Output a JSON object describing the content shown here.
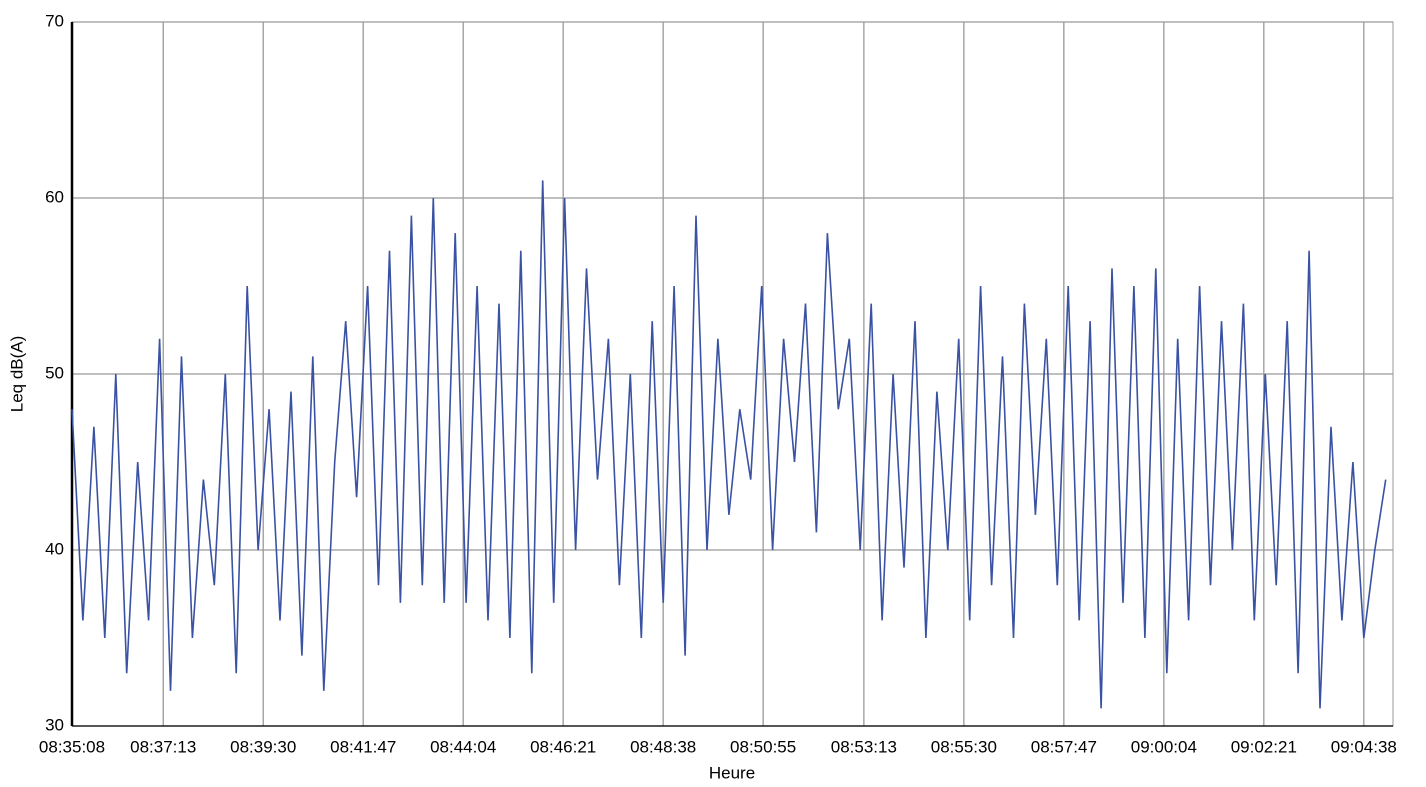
{
  "chart_data": {
    "type": "line",
    "x_label": "Heure",
    "y_label": "Leq dB(A)",
    "x": [
      "08:35:08",
      "08:35:23",
      "08:35:38",
      "08:35:53",
      "08:36:08",
      "08:36:23",
      "08:36:38",
      "08:36:53",
      "08:37:08",
      "08:37:23",
      "08:37:38",
      "08:37:53",
      "08:38:08",
      "08:38:23",
      "08:38:38",
      "08:38:53",
      "08:39:08",
      "08:39:23",
      "08:39:38",
      "08:39:53",
      "08:40:08",
      "08:40:23",
      "08:40:38",
      "08:40:53",
      "08:41:08",
      "08:41:23",
      "08:41:38",
      "08:41:53",
      "08:42:08",
      "08:42:23",
      "08:42:38",
      "08:42:53",
      "08:43:08",
      "08:43:23",
      "08:43:38",
      "08:43:53",
      "08:44:08",
      "08:44:23",
      "08:44:38",
      "08:44:53",
      "08:45:08",
      "08:45:23",
      "08:45:38",
      "08:45:53",
      "08:46:08",
      "08:46:23",
      "08:46:38",
      "08:46:53",
      "08:47:08",
      "08:47:23",
      "08:47:38",
      "08:47:53",
      "08:48:08",
      "08:48:23",
      "08:48:38",
      "08:48:53",
      "08:49:08",
      "08:49:23",
      "08:49:38",
      "08:49:53",
      "08:50:08",
      "08:50:23",
      "08:50:38",
      "08:50:53",
      "08:51:08",
      "08:51:23",
      "08:51:38",
      "08:51:53",
      "08:52:08",
      "08:52:23",
      "08:52:38",
      "08:52:53",
      "08:53:08",
      "08:53:23",
      "08:53:38",
      "08:53:53",
      "08:54:08",
      "08:54:23",
      "08:54:38",
      "08:54:53",
      "08:55:08",
      "08:55:23",
      "08:55:38",
      "08:55:53",
      "08:56:08",
      "08:56:23",
      "08:56:38",
      "08:56:53",
      "08:57:08",
      "08:57:23",
      "08:57:38",
      "08:57:53",
      "08:58:08",
      "08:58:23",
      "08:58:38",
      "08:58:53",
      "08:59:08",
      "08:59:23",
      "08:59:38",
      "08:59:53",
      "09:00:08",
      "09:00:23",
      "09:00:38",
      "09:00:53",
      "09:01:08",
      "09:01:23",
      "09:01:38",
      "09:01:53",
      "09:02:08",
      "09:02:23",
      "09:02:38",
      "09:02:53",
      "09:03:08",
      "09:03:23",
      "09:03:38",
      "09:03:53",
      "09:04:08",
      "09:04:23",
      "09:04:38",
      "09:04:53",
      "09:05:08"
    ],
    "series": [
      {
        "color": "#3a52a3",
        "values": [
          48,
          36,
          47,
          35,
          50,
          33,
          45,
          36,
          52,
          32,
          51,
          35,
          44,
          38,
          50,
          33,
          55,
          40,
          48,
          36,
          49,
          34,
          51,
          32,
          45,
          53,
          43,
          55,
          38,
          57,
          37,
          59,
          38,
          60,
          37,
          58,
          37,
          55,
          36,
          54,
          35,
          57,
          33,
          61,
          37,
          60,
          40,
          56,
          44,
          52,
          38,
          50,
          35,
          53,
          37,
          55,
          34,
          59,
          40,
          52,
          42,
          48,
          44,
          55,
          40,
          52,
          45,
          54,
          41,
          58,
          48,
          52,
          40,
          54,
          36,
          50,
          39,
          53,
          35,
          49,
          40,
          52,
          36,
          55,
          38,
          51,
          35,
          54,
          42,
          52,
          38,
          55,
          36,
          53,
          31,
          56,
          37,
          55,
          35,
          56,
          33,
          52,
          36,
          55,
          38,
          53,
          40,
          54,
          36,
          50,
          38,
          53,
          33,
          57,
          31,
          47,
          36,
          45,
          35,
          40,
          44
        ]
      }
    ],
    "xlim": [
      "08:35:08",
      "09:05:18"
    ],
    "xticks": [
      "08:35:08",
      "08:37:13",
      "08:39:30",
      "08:41:47",
      "08:44:04",
      "08:46:21",
      "08:48:38",
      "08:50:55",
      "08:53:13",
      "08:55:30",
      "08:57:47",
      "09:00:04",
      "09:02:21",
      "09:04:38"
    ],
    "ylim": [
      30,
      70
    ],
    "yticks": [
      30,
      40,
      50,
      60,
      70
    ],
    "grid": true
  }
}
